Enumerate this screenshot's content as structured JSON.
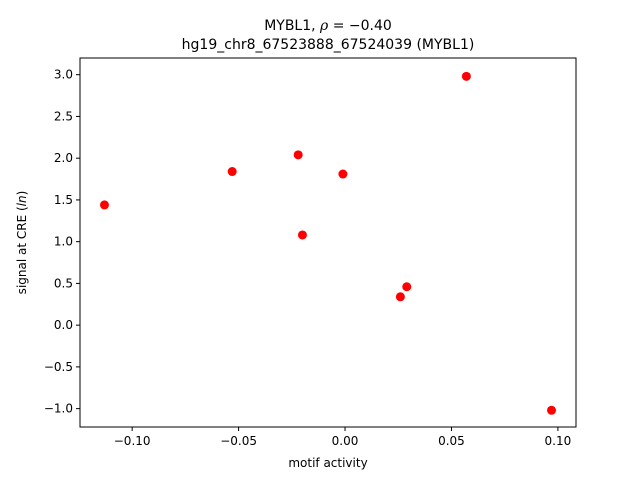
{
  "chart_data": {
    "type": "scatter",
    "title": "MYBL1, ρ = −0.40",
    "subtitle": "hg19_chr8_67523888_67524039 (MYBL1)",
    "xlabel": "motif activity",
    "ylabel": "signal at CRE (ln)",
    "xlim": [
      -0.1245,
      0.1085
    ],
    "ylim": [
      -1.22,
      3.2
    ],
    "x_ticks": [
      -0.1,
      -0.05,
      0.0,
      0.05,
      0.1
    ],
    "x_tick_labels": [
      "−0.10",
      "−0.05",
      "0.00",
      "0.05",
      "0.10"
    ],
    "y_ticks": [
      -1.0,
      -0.5,
      0.0,
      0.5,
      1.0,
      1.5,
      2.0,
      2.5,
      3.0
    ],
    "y_tick_labels": [
      "−1.0",
      "−0.5",
      "0.0",
      "0.5",
      "1.0",
      "1.5",
      "2.0",
      "2.5",
      "3.0"
    ],
    "grid": false,
    "series": [
      {
        "color": "#ff0000",
        "points": [
          {
            "x": -0.113,
            "y": 1.44
          },
          {
            "x": -0.053,
            "y": 1.84
          },
          {
            "x": -0.022,
            "y": 2.04
          },
          {
            "x": -0.02,
            "y": 1.08
          },
          {
            "x": -0.001,
            "y": 1.81
          },
          {
            "x": 0.026,
            "y": 0.34
          },
          {
            "x": 0.029,
            "y": 0.46
          },
          {
            "x": 0.057,
            "y": 2.98
          },
          {
            "x": 0.097,
            "y": -1.02
          }
        ]
      }
    ]
  }
}
